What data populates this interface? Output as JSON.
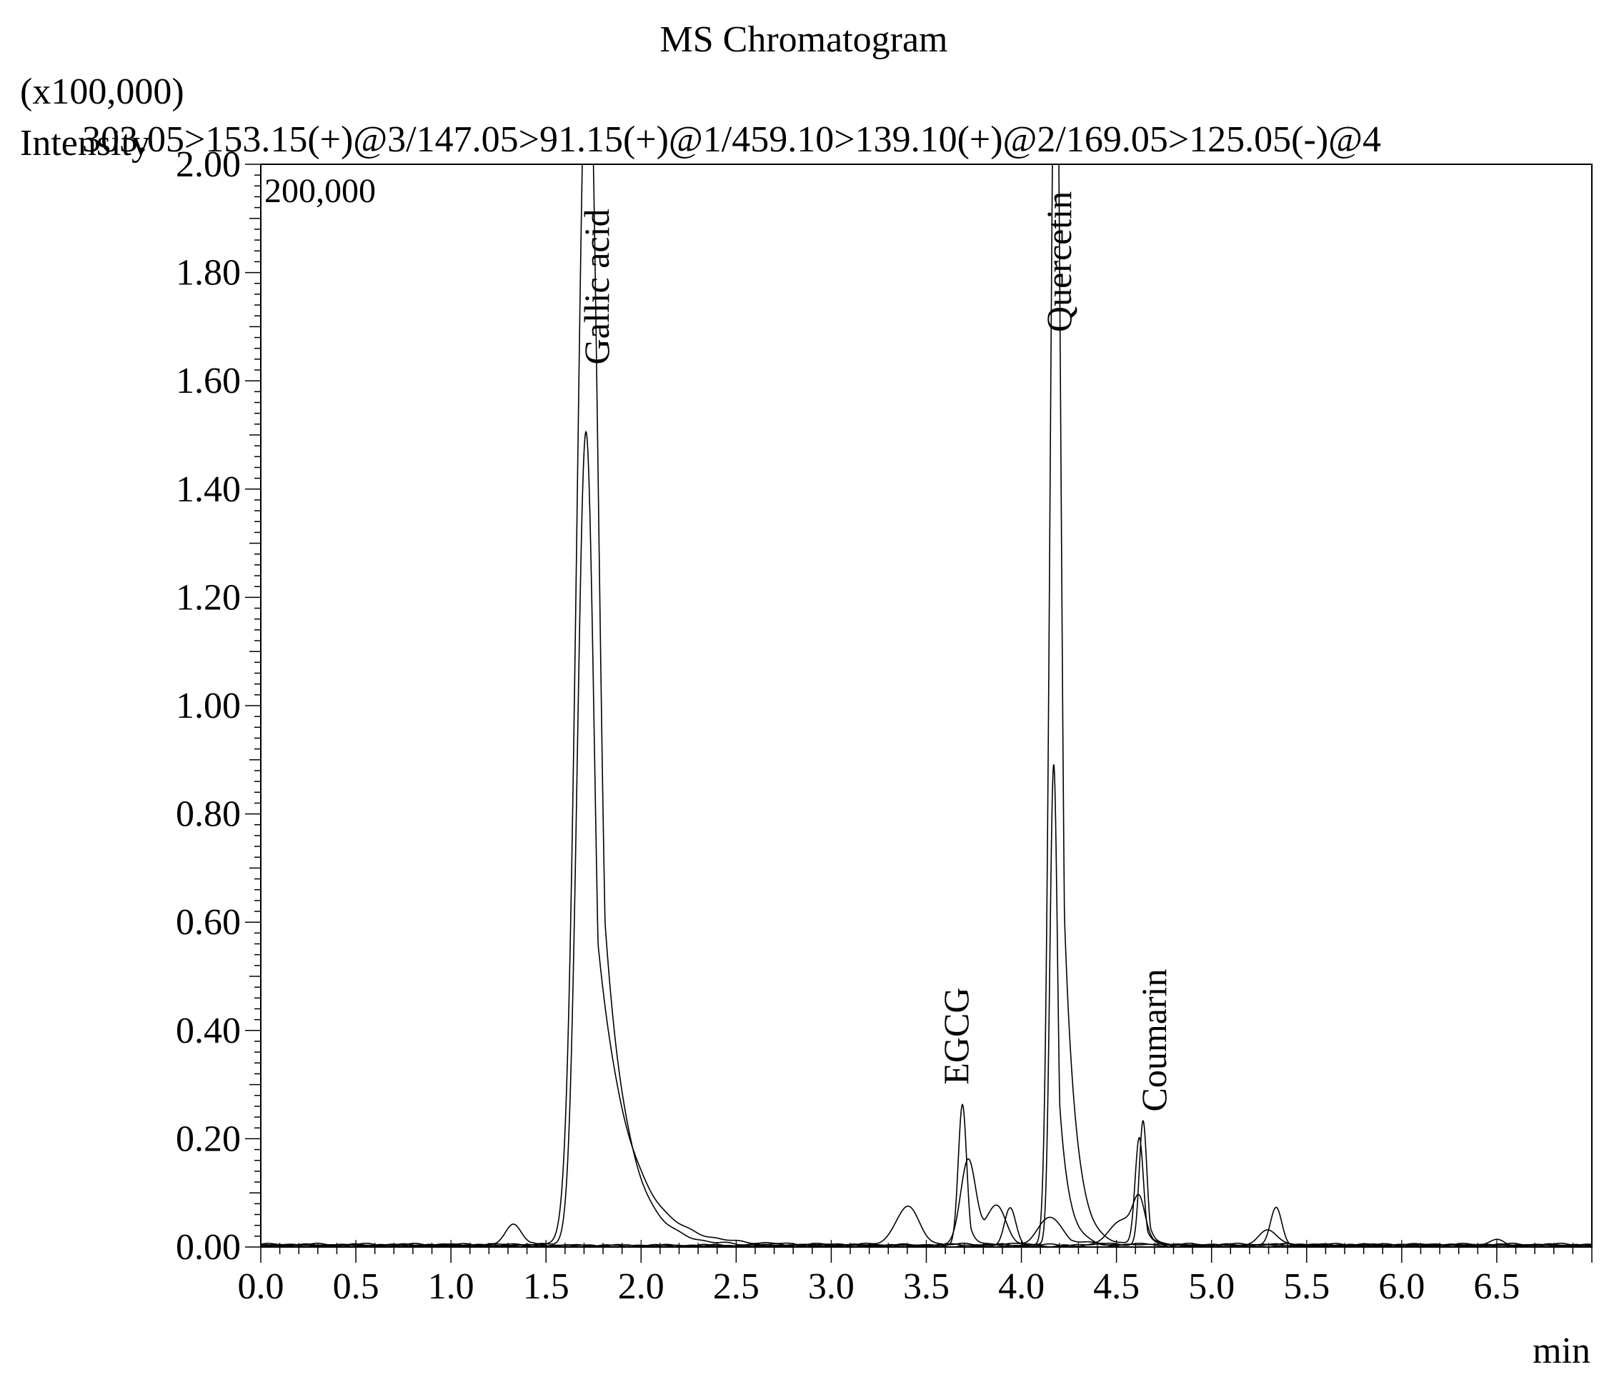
{
  "chart_data": {
    "type": "line",
    "title": "MS Chromatogram",
    "y_multiplier": "(x100,000)",
    "ylabel": "Intensity",
    "channels_label": "303.05>153.15(+)@3/147.05>91.15(+)@1/459.10>139.10(+)@2/169.05>125.05(-)@4",
    "scale_label": "200,000",
    "xlabel": "min",
    "xlim": [
      0.0,
      7.0
    ],
    "ylim": [
      0.0,
      2.0
    ],
    "x_ticks": [
      "0.0",
      "0.5",
      "1.0",
      "1.5",
      "2.0",
      "2.5",
      "3.0",
      "3.5",
      "4.0",
      "4.5",
      "5.0",
      "5.5",
      "6.0",
      "6.5"
    ],
    "x_tick_values": [
      0.0,
      0.5,
      1.0,
      1.5,
      2.0,
      2.5,
      3.0,
      3.5,
      4.0,
      4.5,
      5.0,
      5.5,
      6.0,
      6.5
    ],
    "y_ticks": [
      "0.00",
      "0.20",
      "0.40",
      "0.60",
      "0.80",
      "1.00",
      "1.20",
      "1.40",
      "1.60",
      "1.80",
      "2.00"
    ],
    "y_tick_values": [
      0.0,
      0.2,
      0.4,
      0.6,
      0.8,
      1.0,
      1.2,
      1.4,
      1.6,
      1.8,
      2.0
    ],
    "peak_labels": [
      {
        "text": "Gallic acid",
        "x": 1.83,
        "y": 1.63
      },
      {
        "text": "Quercetin",
        "x": 4.26,
        "y": 1.69
      },
      {
        "text": "EGCG",
        "x": 3.72,
        "y": 0.3
      },
      {
        "text": "Coumarin",
        "x": 4.76,
        "y": 0.25
      }
    ],
    "series": [
      {
        "baseline": 0.005,
        "peaks": [
          {
            "rt": 1.71,
            "height": 1.5,
            "sigma": 0.045,
            "tail": 0.16
          },
          {
            "rt": 3.4,
            "height": 0.07,
            "sigma": 0.06,
            "tail": 0.04
          },
          {
            "rt": 4.15,
            "height": 0.05,
            "sigma": 0.06,
            "tail": 0.1
          }
        ]
      },
      {
        "baseline": 0.004,
        "peaks": [
          {
            "rt": 1.72,
            "height": 2.3,
            "sigma": 0.055,
            "tail": 0.12
          },
          {
            "rt": 1.33,
            "height": 0.04,
            "sigma": 0.04,
            "tail": 0.05
          }
        ]
      },
      {
        "baseline": 0.003,
        "peaks": [
          {
            "rt": 3.69,
            "height": 0.26,
            "sigma": 0.022,
            "tail": 0.03
          },
          {
            "rt": 4.17,
            "height": 0.89,
            "sigma": 0.02,
            "tail": 0.05
          },
          {
            "rt": 4.64,
            "height": 0.23,
            "sigma": 0.02,
            "tail": 0.03
          }
        ]
      },
      {
        "baseline": 0.003,
        "peaks": [
          {
            "rt": 4.18,
            "height": 2.4,
            "sigma": 0.028,
            "tail": 0.06
          },
          {
            "rt": 3.72,
            "height": 0.16,
            "sigma": 0.04,
            "tail": 0.05
          },
          {
            "rt": 4.62,
            "height": 0.2,
            "sigma": 0.022,
            "tail": 0.03
          },
          {
            "rt": 3.87,
            "height": 0.07,
            "sigma": 0.05,
            "tail": 0.04
          },
          {
            "rt": 5.34,
            "height": 0.07,
            "sigma": 0.03,
            "tail": 0.03
          },
          {
            "rt": 6.5,
            "height": 0.01,
            "sigma": 0.04,
            "tail": 0.02
          }
        ]
      },
      {
        "baseline": 0.002,
        "peaks": [
          {
            "rt": 3.94,
            "height": 0.07,
            "sigma": 0.03,
            "tail": 0.03
          },
          {
            "rt": 4.55,
            "height": 0.05,
            "sigma": 0.08,
            "tail": 0.05
          },
          {
            "rt": 5.3,
            "height": 0.03,
            "sigma": 0.05,
            "tail": 0.03
          },
          {
            "rt": 4.62,
            "height": 0.06,
            "sigma": 0.03,
            "tail": 0.03
          }
        ]
      }
    ],
    "grid": false,
    "legend": "none"
  }
}
